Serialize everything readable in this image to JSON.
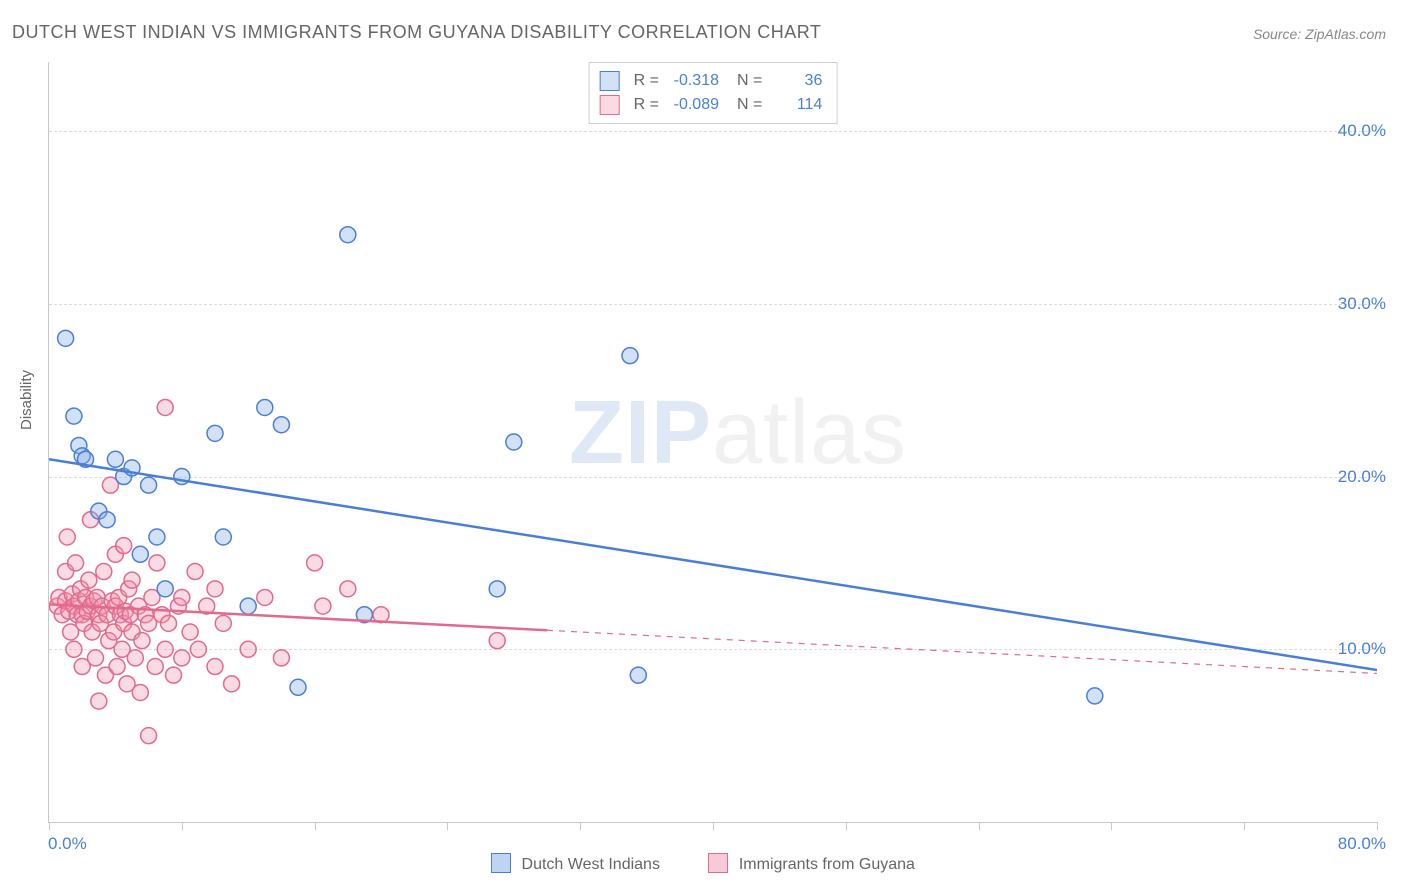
{
  "title": "DUTCH WEST INDIAN VS IMMIGRANTS FROM GUYANA DISABILITY CORRELATION CHART",
  "source": "Source: ZipAtlas.com",
  "y_axis_label": "Disability",
  "watermark": {
    "zip": "ZIP",
    "atlas": "atlas"
  },
  "chart": {
    "type": "scatter",
    "x_min": 0.0,
    "x_max": 80.0,
    "y_min": 0.0,
    "y_max": 44.0,
    "x_ticks": [
      0,
      8,
      16,
      24,
      32,
      40,
      48,
      56,
      64,
      72,
      80
    ],
    "y_gridlines": [
      10.0,
      20.0,
      30.0,
      40.0
    ],
    "x_min_label": "0.0%",
    "x_max_label": "80.0%",
    "y_tick_labels": [
      "10.0%",
      "20.0%",
      "30.0%",
      "40.0%"
    ],
    "background_color": "#ffffff",
    "grid_color": "#dcdcdc",
    "axis_color": "#c8c8c8",
    "tick_label_color": "#4a7fd8",
    "label_color": "#666666",
    "marker_radius": 8,
    "marker_stroke_width": 1.5,
    "marker_fill_opacity": 0.28,
    "trend_line_width": 2.5,
    "series": [
      {
        "name": "Dutch West Indians",
        "color": "#4a7fd8",
        "fill": "rgba(128,170,230,0.35)",
        "R": "-0.318",
        "N": "36",
        "trend": {
          "x1": 0,
          "y1": 21.0,
          "x2": 80,
          "y2": 8.8,
          "solid_to_x": 80
        },
        "points": [
          [
            1.0,
            28.0
          ],
          [
            1.5,
            23.5
          ],
          [
            1.8,
            21.8
          ],
          [
            2.0,
            21.2
          ],
          [
            2.2,
            21.0
          ],
          [
            3.0,
            18.0
          ],
          [
            3.5,
            17.5
          ],
          [
            4.0,
            21.0
          ],
          [
            4.5,
            20.0
          ],
          [
            5.0,
            20.5
          ],
          [
            5.5,
            15.5
          ],
          [
            6.0,
            19.5
          ],
          [
            6.5,
            16.5
          ],
          [
            7.0,
            13.5
          ],
          [
            8.0,
            20.0
          ],
          [
            10.0,
            22.5
          ],
          [
            10.5,
            16.5
          ],
          [
            12.0,
            12.5
          ],
          [
            13.0,
            24.0
          ],
          [
            14.0,
            23.0
          ],
          [
            15.0,
            7.8
          ],
          [
            18.0,
            34.0
          ],
          [
            19.0,
            12.0
          ],
          [
            27.0,
            13.5
          ],
          [
            28.0,
            22.0
          ],
          [
            35.0,
            27.0
          ],
          [
            35.5,
            8.5
          ],
          [
            63.0,
            7.3
          ]
        ]
      },
      {
        "name": "Immigrants from Guyana",
        "color": "#e26a8c",
        "fill": "rgba(240,150,175,0.35)",
        "R": "-0.089",
        "N": "114",
        "trend": {
          "x1": 0,
          "y1": 12.6,
          "x2": 80,
          "y2": 8.6,
          "solid_to_x": 30
        },
        "points": [
          [
            0.5,
            12.5
          ],
          [
            0.6,
            13.0
          ],
          [
            0.8,
            12.0
          ],
          [
            1.0,
            12.8
          ],
          [
            1.0,
            14.5
          ],
          [
            1.1,
            16.5
          ],
          [
            1.2,
            12.2
          ],
          [
            1.3,
            11.0
          ],
          [
            1.4,
            13.2
          ],
          [
            1.5,
            12.5
          ],
          [
            1.5,
            10.0
          ],
          [
            1.6,
            15.0
          ],
          [
            1.7,
            12.0
          ],
          [
            1.8,
            12.8
          ],
          [
            1.9,
            13.5
          ],
          [
            2.0,
            12.0
          ],
          [
            2.0,
            9.0
          ],
          [
            2.1,
            11.5
          ],
          [
            2.2,
            13.0
          ],
          [
            2.3,
            12.2
          ],
          [
            2.4,
            14.0
          ],
          [
            2.5,
            12.5
          ],
          [
            2.5,
            17.5
          ],
          [
            2.6,
            11.0
          ],
          [
            2.7,
            12.8
          ],
          [
            2.8,
            9.5
          ],
          [
            2.9,
            13.0
          ],
          [
            3.0,
            12.0
          ],
          [
            3.0,
            7.0
          ],
          [
            3.1,
            11.5
          ],
          [
            3.2,
            12.5
          ],
          [
            3.3,
            14.5
          ],
          [
            3.4,
            8.5
          ],
          [
            3.5,
            12.0
          ],
          [
            3.6,
            10.5
          ],
          [
            3.7,
            19.5
          ],
          [
            3.8,
            12.8
          ],
          [
            3.9,
            11.0
          ],
          [
            4.0,
            12.5
          ],
          [
            4.0,
            15.5
          ],
          [
            4.1,
            9.0
          ],
          [
            4.2,
            13.0
          ],
          [
            4.3,
            12.0
          ],
          [
            4.4,
            10.0
          ],
          [
            4.5,
            11.5
          ],
          [
            4.5,
            16.0
          ],
          [
            4.6,
            12.2
          ],
          [
            4.7,
            8.0
          ],
          [
            4.8,
            13.5
          ],
          [
            4.9,
            12.0
          ],
          [
            5.0,
            11.0
          ],
          [
            5.0,
            14.0
          ],
          [
            5.2,
            9.5
          ],
          [
            5.4,
            12.5
          ],
          [
            5.5,
            7.5
          ],
          [
            5.6,
            10.5
          ],
          [
            5.8,
            12.0
          ],
          [
            6.0,
            11.5
          ],
          [
            6.0,
            5.0
          ],
          [
            6.2,
            13.0
          ],
          [
            6.4,
            9.0
          ],
          [
            6.5,
            15.0
          ],
          [
            6.8,
            12.0
          ],
          [
            7.0,
            10.0
          ],
          [
            7.0,
            24.0
          ],
          [
            7.2,
            11.5
          ],
          [
            7.5,
            8.5
          ],
          [
            7.8,
            12.5
          ],
          [
            8.0,
            9.5
          ],
          [
            8.0,
            13.0
          ],
          [
            8.5,
            11.0
          ],
          [
            8.8,
            14.5
          ],
          [
            9.0,
            10.0
          ],
          [
            9.5,
            12.5
          ],
          [
            10.0,
            9.0
          ],
          [
            10.0,
            13.5
          ],
          [
            10.5,
            11.5
          ],
          [
            11.0,
            8.0
          ],
          [
            12.0,
            10.0
          ],
          [
            13.0,
            13.0
          ],
          [
            14.0,
            9.5
          ],
          [
            16.0,
            15.0
          ],
          [
            16.5,
            12.5
          ],
          [
            18.0,
            13.5
          ],
          [
            20.0,
            12.0
          ],
          [
            27.0,
            10.5
          ]
        ]
      }
    ]
  },
  "legend_bottom": [
    {
      "label": "Dutch West Indians",
      "fill": "rgba(128,170,230,0.5)",
      "stroke": "#4a7fd8"
    },
    {
      "label": "Immigrants from Guyana",
      "fill": "rgba(240,150,175,0.5)",
      "stroke": "#e26a8c"
    }
  ]
}
